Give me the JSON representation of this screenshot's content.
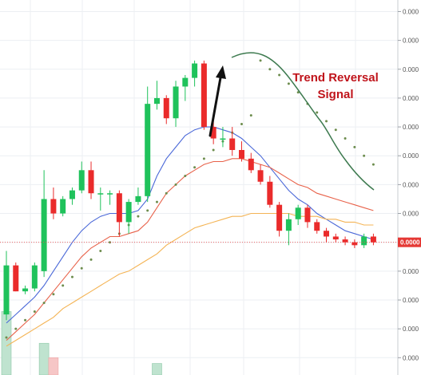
{
  "chart_data": {
    "type": "candlestick",
    "title": "",
    "xlabel": "",
    "ylabel": "",
    "ylim": [
      0,
      13
    ],
    "grid": true,
    "y_ticks": [
      {
        "value": 12.6,
        "label": "0.000"
      },
      {
        "value": 11.6,
        "label": "0.000"
      },
      {
        "value": 10.6,
        "label": "0.000"
      },
      {
        "value": 9.6,
        "label": "0.000"
      },
      {
        "value": 8.6,
        "label": "0.000"
      },
      {
        "value": 7.6,
        "label": "0.000"
      },
      {
        "value": 6.6,
        "label": "0.000"
      },
      {
        "value": 5.6,
        "label": "0.000"
      },
      {
        "value": 4.6,
        "label": "0.000"
      },
      {
        "value": 3.6,
        "label": "0.000"
      },
      {
        "value": 2.6,
        "label": "0.000"
      },
      {
        "value": 1.6,
        "label": "0.000"
      },
      {
        "value": 0.6,
        "label": "0.000"
      }
    ],
    "last_price": {
      "value": 4.6,
      "label": "0.0000"
    },
    "candles": [
      {
        "o": 2.1,
        "h": 4.3,
        "l": 1.9,
        "c": 3.8
      },
      {
        "o": 3.8,
        "h": 3.9,
        "l": 2.9,
        "c": 2.9
      },
      {
        "o": 2.9,
        "h": 3.1,
        "l": 2.8,
        "c": 3.0
      },
      {
        "o": 3.0,
        "h": 3.9,
        "l": 2.9,
        "c": 3.8
      },
      {
        "o": 3.6,
        "h": 7.1,
        "l": 3.4,
        "c": 6.1
      },
      {
        "o": 6.1,
        "h": 6.5,
        "l": 5.4,
        "c": 5.6
      },
      {
        "o": 5.6,
        "h": 6.2,
        "l": 5.5,
        "c": 6.1
      },
      {
        "o": 6.1,
        "h": 6.5,
        "l": 5.9,
        "c": 6.4
      },
      {
        "o": 6.4,
        "h": 7.4,
        "l": 6.3,
        "c": 7.1
      },
      {
        "o": 7.1,
        "h": 7.4,
        "l": 6.1,
        "c": 6.3
      },
      {
        "o": 6.3,
        "h": 6.5,
        "l": 5.7,
        "c": 6.3
      },
      {
        "o": 6.3,
        "h": 6.4,
        "l": 5.9,
        "c": 6.3
      },
      {
        "o": 6.3,
        "h": 6.4,
        "l": 4.8,
        "c": 5.3
      },
      {
        "o": 5.3,
        "h": 6.1,
        "l": 4.9,
        "c": 6.0
      },
      {
        "o": 6.0,
        "h": 6.5,
        "l": 5.9,
        "c": 6.2
      },
      {
        "o": 6.2,
        "h": 10.0,
        "l": 6.0,
        "c": 9.4
      },
      {
        "o": 9.4,
        "h": 10.2,
        "l": 9.2,
        "c": 9.6
      },
      {
        "o": 9.6,
        "h": 9.7,
        "l": 8.7,
        "c": 8.9
      },
      {
        "o": 8.9,
        "h": 10.2,
        "l": 8.6,
        "c": 10.0
      },
      {
        "o": 10.0,
        "h": 10.4,
        "l": 9.5,
        "c": 10.3
      },
      {
        "o": 10.3,
        "h": 10.9,
        "l": 10.0,
        "c": 10.8
      },
      {
        "o": 10.8,
        "h": 10.9,
        "l": 8.5,
        "c": 8.6
      },
      {
        "o": 8.6,
        "h": 8.9,
        "l": 8.0,
        "c": 8.2
      },
      {
        "o": 8.2,
        "h": 8.6,
        "l": 7.9,
        "c": 8.2
      },
      {
        "o": 8.2,
        "h": 8.6,
        "l": 7.6,
        "c": 7.8
      },
      {
        "o": 7.8,
        "h": 8.1,
        "l": 7.4,
        "c": 7.5
      },
      {
        "o": 7.5,
        "h": 7.7,
        "l": 7.0,
        "c": 7.1
      },
      {
        "o": 7.1,
        "h": 7.3,
        "l": 6.6,
        "c": 6.7
      },
      {
        "o": 6.7,
        "h": 6.9,
        "l": 5.8,
        "c": 5.9
      },
      {
        "o": 5.9,
        "h": 6.0,
        "l": 4.8,
        "c": 5.0
      },
      {
        "o": 5.0,
        "h": 5.6,
        "l": 4.5,
        "c": 5.4
      },
      {
        "o": 5.4,
        "h": 5.9,
        "l": 5.2,
        "c": 5.8
      },
      {
        "o": 5.8,
        "h": 5.9,
        "l": 5.1,
        "c": 5.3
      },
      {
        "o": 5.3,
        "h": 5.4,
        "l": 4.9,
        "c": 5.0
      },
      {
        "o": 5.0,
        "h": 5.1,
        "l": 4.6,
        "c": 4.8
      },
      {
        "o": 4.8,
        "h": 4.9,
        "l": 4.6,
        "c": 4.7
      },
      {
        "o": 4.7,
        "h": 4.8,
        "l": 4.5,
        "c": 4.6
      },
      {
        "o": 4.6,
        "h": 4.7,
        "l": 4.4,
        "c": 4.5
      },
      {
        "o": 4.5,
        "h": 4.9,
        "l": 4.4,
        "c": 4.8
      },
      {
        "o": 4.8,
        "h": 4.9,
        "l": 4.5,
        "c": 4.6
      }
    ],
    "series": [
      {
        "type": "line",
        "color": "#4a68d8",
        "values": [
          1.8,
          2.1,
          2.4,
          2.7,
          3.1,
          3.6,
          4.1,
          4.6,
          5.0,
          5.3,
          5.5,
          5.6,
          5.6,
          5.6,
          5.7,
          6.1,
          6.9,
          7.5,
          7.9,
          8.3,
          8.5,
          8.6,
          8.6,
          8.5,
          8.4,
          8.2,
          7.9,
          7.6,
          7.2,
          6.8,
          6.4,
          6.1,
          5.9,
          5.6,
          5.4,
          5.2,
          5.0,
          4.9,
          4.8,
          4.7
        ]
      },
      {
        "type": "line",
        "color": "#e8624a",
        "values": [
          1.2,
          1.5,
          1.8,
          2.1,
          2.5,
          2.9,
          3.3,
          3.7,
          4.1,
          4.4,
          4.6,
          4.8,
          4.8,
          4.9,
          5.0,
          5.3,
          5.8,
          6.3,
          6.6,
          6.9,
          7.1,
          7.3,
          7.4,
          7.4,
          7.5,
          7.5,
          7.4,
          7.3,
          7.2,
          7.0,
          6.8,
          6.6,
          6.5,
          6.3,
          6.2,
          6.1,
          6.0,
          5.9,
          5.8,
          5.7
        ]
      },
      {
        "type": "line",
        "color": "#f4b455",
        "values": [
          1.0,
          1.2,
          1.4,
          1.6,
          1.8,
          2.0,
          2.3,
          2.5,
          2.7,
          2.9,
          3.1,
          3.3,
          3.5,
          3.6,
          3.8,
          4.0,
          4.2,
          4.5,
          4.7,
          4.9,
          5.1,
          5.2,
          5.3,
          5.4,
          5.5,
          5.5,
          5.6,
          5.6,
          5.6,
          5.6,
          5.6,
          5.5,
          5.5,
          5.5,
          5.4,
          5.4,
          5.3,
          5.3,
          5.2,
          5.2
        ]
      },
      {
        "type": "scatter",
        "color": "#6d8d4e",
        "values": [
          1.3,
          1.6,
          1.9,
          2.2,
          2.5,
          2.8,
          3.1,
          3.4,
          3.7,
          4.0,
          4.3,
          4.6,
          4.9,
          5.2,
          5.5,
          5.7,
          6.0,
          6.3,
          6.6,
          6.9,
          7.2,
          7.5,
          7.8,
          8.1,
          8.4,
          8.7,
          9.0,
          10.9,
          10.6,
          10.4,
          10.1,
          9.8,
          9.4,
          9.1,
          8.8,
          8.5,
          8.2,
          7.9,
          7.6,
          7.3
        ]
      }
    ],
    "volume": [
      {
        "index": 0,
        "value": 2.2,
        "color": "green"
      },
      {
        "index": 4,
        "value": 1.1,
        "color": "green"
      },
      {
        "index": 5,
        "value": 0.6,
        "color": "red"
      },
      {
        "index": 16,
        "value": 0.4,
        "color": "green"
      }
    ],
    "annotations": [
      {
        "text": "Trend Reversal",
        "line": 1
      },
      {
        "text": "Signal",
        "line": 2
      }
    ]
  }
}
